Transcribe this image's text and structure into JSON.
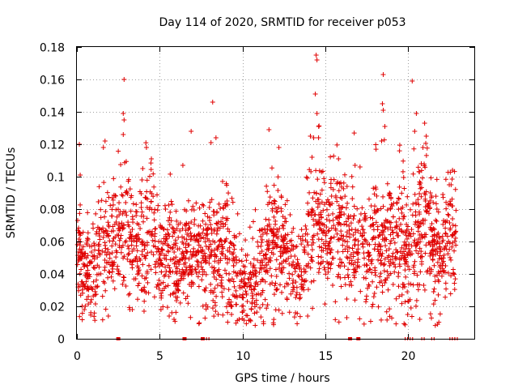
{
  "chart_data": {
    "type": "scatter",
    "title": "Day 114 of 2020, SRMTID for receiver p053",
    "xlabel": "GPS time / hours",
    "ylabel": "SRMTID / TECUs",
    "xlim": [
      0,
      24
    ],
    "ylim": [
      0,
      0.18
    ],
    "xticks": [
      0,
      5,
      10,
      15,
      20
    ],
    "xtick_labels": [
      "0",
      "5",
      "10",
      "15",
      "20"
    ],
    "yticks": [
      0,
      0.02,
      0.04,
      0.06,
      0.08,
      0.1,
      0.12,
      0.14,
      0.16,
      0.18
    ],
    "ytick_labels": [
      "0",
      "0.02",
      "0.04",
      "0.06",
      "0.08",
      "0.1",
      "0.12",
      "0.14",
      "0.16",
      "0.18"
    ],
    "grid": true,
    "marker": "+",
    "color": "#e00000",
    "trend": [
      [
        0.0,
        0.055,
        0.014
      ],
      [
        0.5,
        0.038,
        0.01
      ],
      [
        1.0,
        0.042,
        0.012
      ],
      [
        1.5,
        0.055,
        0.013
      ],
      [
        2.0,
        0.06,
        0.014
      ],
      [
        2.5,
        0.058,
        0.014
      ],
      [
        3.0,
        0.07,
        0.016
      ],
      [
        3.5,
        0.052,
        0.012
      ],
      [
        4.0,
        0.055,
        0.014
      ],
      [
        4.5,
        0.065,
        0.016
      ],
      [
        5.0,
        0.045,
        0.012
      ],
      [
        5.5,
        0.055,
        0.014
      ],
      [
        6.0,
        0.045,
        0.012
      ],
      [
        6.5,
        0.05,
        0.013
      ],
      [
        7.0,
        0.05,
        0.013
      ],
      [
        7.5,
        0.045,
        0.012
      ],
      [
        8.0,
        0.055,
        0.014
      ],
      [
        8.5,
        0.055,
        0.014
      ],
      [
        9.0,
        0.055,
        0.014
      ],
      [
        9.5,
        0.045,
        0.012
      ],
      [
        10.0,
        0.03,
        0.009
      ],
      [
        10.5,
        0.03,
        0.01
      ],
      [
        11.0,
        0.045,
        0.012
      ],
      [
        11.5,
        0.055,
        0.013
      ],
      [
        12.0,
        0.06,
        0.015
      ],
      [
        12.5,
        0.055,
        0.014
      ],
      [
        13.0,
        0.045,
        0.012
      ],
      [
        13.5,
        0.04,
        0.011
      ],
      [
        14.0,
        0.055,
        0.014
      ],
      [
        14.5,
        0.075,
        0.016
      ],
      [
        15.0,
        0.065,
        0.015
      ],
      [
        15.5,
        0.07,
        0.015
      ],
      [
        16.0,
        0.06,
        0.014
      ],
      [
        16.5,
        0.06,
        0.014
      ],
      [
        17.0,
        0.055,
        0.013
      ],
      [
        17.5,
        0.05,
        0.013
      ],
      [
        18.0,
        0.06,
        0.014
      ],
      [
        18.5,
        0.055,
        0.014
      ],
      [
        19.0,
        0.055,
        0.014
      ],
      [
        19.5,
        0.06,
        0.015
      ],
      [
        20.0,
        0.05,
        0.013
      ],
      [
        20.5,
        0.065,
        0.015
      ],
      [
        21.0,
        0.07,
        0.016
      ],
      [
        21.5,
        0.055,
        0.014
      ],
      [
        22.0,
        0.05,
        0.013
      ],
      [
        22.5,
        0.065,
        0.015
      ],
      [
        22.9,
        0.055,
        0.014
      ]
    ],
    "outliers": [
      [
        0.15,
        0.12
      ],
      [
        0.2,
        0.101
      ],
      [
        1.6,
        0.118
      ],
      [
        1.7,
        0.122
      ],
      [
        2.85,
        0.16
      ],
      [
        2.8,
        0.139
      ],
      [
        2.85,
        0.135
      ],
      [
        2.8,
        0.126
      ],
      [
        4.2,
        0.118
      ],
      [
        4.5,
        0.111
      ],
      [
        6.4,
        0.107
      ],
      [
        6.9,
        0.128
      ],
      [
        8.2,
        0.146
      ],
      [
        8.1,
        0.121
      ],
      [
        8.4,
        0.124
      ],
      [
        11.6,
        0.129
      ],
      [
        12.2,
        0.118
      ],
      [
        14.45,
        0.175
      ],
      [
        14.5,
        0.172
      ],
      [
        14.4,
        0.151
      ],
      [
        14.5,
        0.139
      ],
      [
        14.6,
        0.131
      ],
      [
        14.1,
        0.125
      ],
      [
        14.3,
        0.124
      ],
      [
        14.2,
        0.112
      ],
      [
        15.8,
        0.111
      ],
      [
        16.8,
        0.107
      ],
      [
        17.1,
        0.106
      ],
      [
        18.5,
        0.163
      ],
      [
        18.45,
        0.145
      ],
      [
        18.5,
        0.141
      ],
      [
        18.6,
        0.131
      ],
      [
        18.4,
        0.122
      ],
      [
        20.25,
        0.159
      ],
      [
        20.4,
        0.128
      ],
      [
        20.5,
        0.139
      ],
      [
        21.0,
        0.133
      ],
      [
        21.1,
        0.125
      ],
      [
        20.9,
        0.118
      ],
      [
        20.8,
        0.108
      ],
      [
        22.1,
        0.089
      ],
      [
        22.6,
        0.095
      ],
      [
        16.3,
        0.013
      ],
      [
        9.8,
        0.012
      ],
      [
        10.5,
        0.011
      ],
      [
        1.9,
        0.014
      ],
      [
        3.2,
        0.018
      ],
      [
        7.8,
        0.021
      ],
      [
        13.2,
        0.016
      ]
    ],
    "zero_flags": [
      2.5,
      6.5,
      7.6,
      7.9,
      16.5,
      17.0,
      19.9,
      20.2,
      20.9,
      21.5,
      22.6,
      22.75,
      22.9
    ],
    "zero_flag_solid": [
      2.5,
      6.5,
      7.6,
      16.5,
      17.0
    ]
  }
}
